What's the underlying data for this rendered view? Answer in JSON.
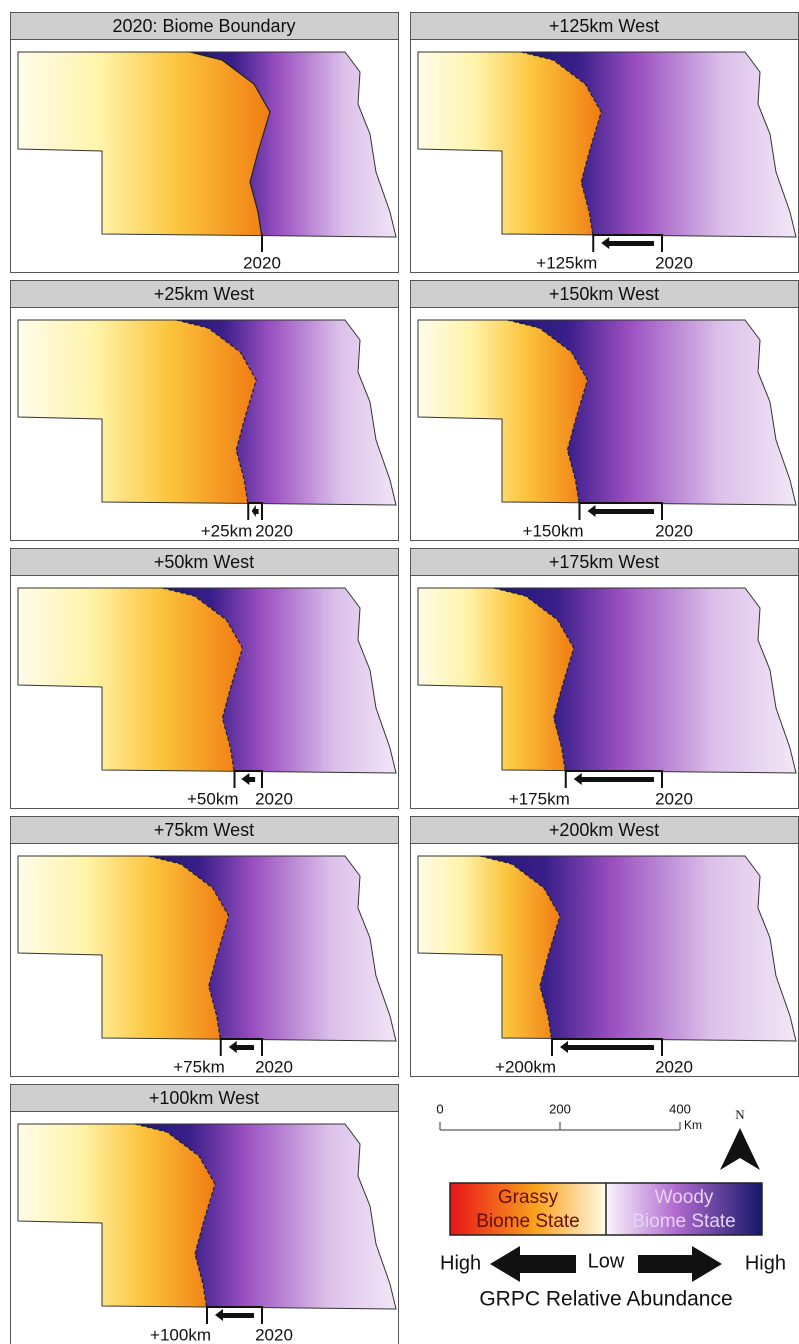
{
  "panels": [
    {
      "title": "2020: Biome Boundary",
      "reference_label": "2020"
    },
    {
      "title": "+125km West",
      "shift": {
        "value": 125,
        "label": "+125km"
      },
      "reference_label": "2020"
    },
    {
      "title": "+25km West",
      "shift": {
        "value": 25,
        "label": "+25km"
      },
      "reference_label": "2020"
    },
    {
      "title": "+150km West",
      "shift": {
        "value": 150,
        "label": "+150km"
      },
      "reference_label": "2020"
    },
    {
      "title": "+50km West",
      "shift": {
        "value": 50,
        "label": "+50km"
      },
      "reference_label": "2020"
    },
    {
      "title": "+175km West",
      "shift": {
        "value": 175,
        "label": "+175km"
      },
      "reference_label": "2020"
    },
    {
      "title": "+75km West",
      "shift": {
        "value": 75,
        "label": "+75km"
      },
      "reference_label": "2020"
    },
    {
      "title": "+200km West",
      "shift": {
        "value": 200,
        "label": "+200km"
      },
      "reference_label": "2020"
    },
    {
      "title": "+100km West",
      "shift": {
        "value": 100,
        "label": "+100km"
      },
      "reference_label": "2020"
    }
  ],
  "scale_bar": {
    "ticks": [
      0,
      200,
      400
    ],
    "unit": "Km"
  },
  "north_label": "N",
  "legend": {
    "grassy": [
      "Grassy",
      "Biome State"
    ],
    "woody": [
      "Woody",
      "Biome State"
    ],
    "high_left": "High",
    "low": "Low",
    "high_right": "High",
    "title": "GRPC Relative Abundance"
  }
}
